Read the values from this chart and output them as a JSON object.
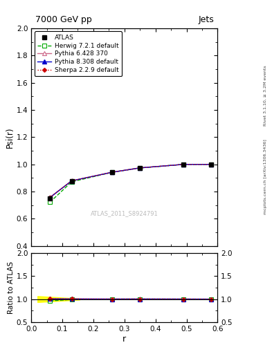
{
  "title_left": "7000 GeV pp",
  "title_right": "Jets",
  "ylabel_main": "Psi(r)",
  "ylabel_ratio": "Ratio to ATLAS",
  "xlabel": "r",
  "right_label_top": "Rivet 3.1.10, ≥ 3.2M events",
  "right_label_bottom": "mcplots.cern.ch [arXiv:1306.3436]",
  "watermark": "ATLAS_2011_S8924791",
  "ylim_main": [
    0.4,
    2.0
  ],
  "ylim_ratio": [
    0.5,
    2.0
  ],
  "xlim": [
    0.0,
    0.6
  ],
  "x_ticks": [
    0.0,
    0.1,
    0.2,
    0.3,
    0.4,
    0.5,
    0.6
  ],
  "yticks_main": [
    0.4,
    0.6,
    0.8,
    1.0,
    1.2,
    1.4,
    1.6,
    1.8,
    2.0
  ],
  "yticks_ratio": [
    0.5,
    1.0,
    1.5,
    2.0
  ],
  "atlas": {
    "label": "ATLAS",
    "x": [
      0.06,
      0.13,
      0.26,
      0.35,
      0.49,
      0.58
    ],
    "y": [
      0.752,
      0.876,
      0.941,
      0.972,
      0.999,
      1.0
    ],
    "color": "black",
    "marker": "s",
    "markersize": 5
  },
  "herwig": {
    "label": "Herwig 7.2.1 default",
    "x": [
      0.06,
      0.13,
      0.26,
      0.35,
      0.49,
      0.58
    ],
    "y": [
      0.722,
      0.872,
      0.942,
      0.974,
      1.0,
      1.0
    ],
    "color": "#00aa00",
    "marker": "s",
    "markersize": 4,
    "linestyle": "--"
  },
  "pythia6": {
    "label": "Pythia 6.428 370",
    "x": [
      0.06,
      0.13,
      0.26,
      0.35,
      0.49,
      0.58
    ],
    "y": [
      0.758,
      0.88,
      0.943,
      0.975,
      1.0,
      1.0
    ],
    "color": "#cc6688",
    "marker": "^",
    "markersize": 4,
    "linestyle": "-"
  },
  "pythia8": {
    "label": "Pythia 8.308 default",
    "x": [
      0.06,
      0.13,
      0.26,
      0.35,
      0.49,
      0.58
    ],
    "y": [
      0.756,
      0.879,
      0.942,
      0.974,
      1.0,
      1.0
    ],
    "color": "#0000cc",
    "marker": "^",
    "markersize": 4,
    "linestyle": "-"
  },
  "sherpa": {
    "label": "Sherpa 2.2.9 default",
    "x": [
      0.06,
      0.13,
      0.26,
      0.35,
      0.49,
      0.58
    ],
    "y": [
      0.757,
      0.879,
      0.942,
      0.974,
      1.0,
      1.0
    ],
    "color": "#cc0000",
    "marker": "D",
    "markersize": 3,
    "linestyle": ":"
  },
  "ratio_herwig": [
    0.96,
    0.995,
    1.001,
    1.002,
    1.001,
    1.0
  ],
  "ratio_pythia6": [
    1.008,
    1.005,
    1.002,
    1.003,
    1.001,
    1.0
  ],
  "ratio_pythia8": [
    1.005,
    1.003,
    1.001,
    1.002,
    1.001,
    1.0
  ],
  "ratio_sherpa": [
    1.007,
    1.003,
    1.001,
    1.002,
    1.001,
    1.0
  ]
}
